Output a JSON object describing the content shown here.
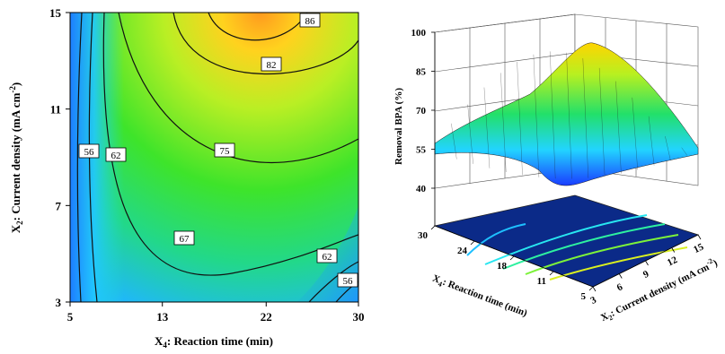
{
  "chart_data": [
    {
      "type": "contour",
      "xlabel": "X₄: Reaction time (min)",
      "ylabel": "X₂: Current density (mA cm⁻²)",
      "xlabel_parts": [
        "X",
        "4",
        ": Reaction time (min)"
      ],
      "ylabel_parts": [
        "X",
        "2",
        ": Current density (mA cm",
        "-2",
        ")"
      ],
      "xticks": [
        "5",
        "13",
        "22",
        "30"
      ],
      "yticks": [
        "3",
        "7",
        "11",
        "15"
      ],
      "xlim": [
        5,
        30
      ],
      "ylim": [
        3,
        15
      ],
      "grid": false,
      "contour_labels": [
        "86",
        "82",
        "75",
        "67",
        "62",
        "56",
        "62",
        "56"
      ],
      "contour_levels": [
        56,
        62,
        67,
        75,
        82,
        86
      ],
      "colormap": [
        "#0b2fd0",
        "#1fa0ff",
        "#22dcdc",
        "#22e06a",
        "#8af020",
        "#ffe600",
        "#ff8c00"
      ]
    },
    {
      "type": "surface3d",
      "zlabel": "Removal BPA (%)",
      "xlabel_parts": [
        "X",
        "4",
        ": Reaction time (min)"
      ],
      "ylabel_parts": [
        "X",
        "2",
        ": Current density (mA cm",
        "-2",
        ")"
      ],
      "zticks": [
        "40",
        "55",
        "70",
        "85",
        "100"
      ],
      "reaction_time_ticks": [
        "30",
        "24",
        "18",
        "11",
        "5"
      ],
      "current_density_ticks": [
        "3",
        "6",
        "9",
        "12",
        "15"
      ],
      "zlim": [
        40,
        100
      ],
      "colormap": [
        "#1a3cff",
        "#22d4ff",
        "#22e06a",
        "#b8f020",
        "#ffd400"
      ]
    }
  ]
}
